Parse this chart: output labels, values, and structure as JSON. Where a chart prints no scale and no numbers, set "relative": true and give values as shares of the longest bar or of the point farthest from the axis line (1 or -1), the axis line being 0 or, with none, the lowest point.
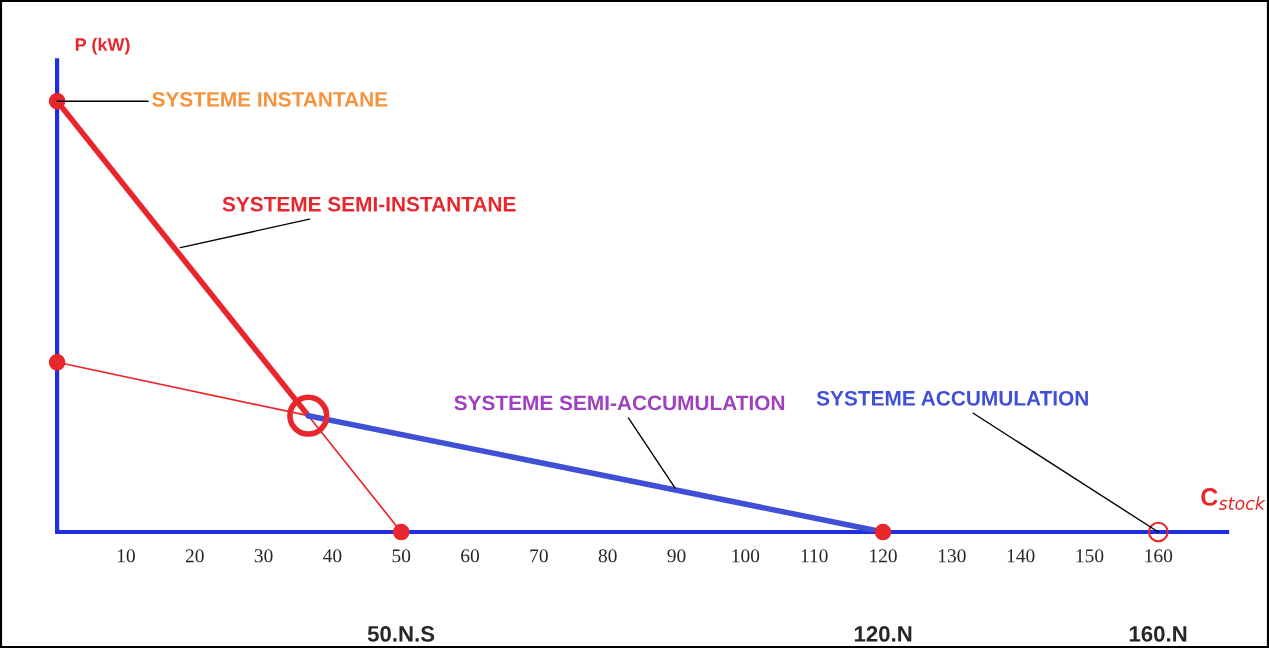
{
  "chart_data": {
    "type": "line",
    "relative": true,
    "xlabel": "C$_{stock}$",
    "ylabel": "P (kW)",
    "xlim": [
      0,
      170
    ],
    "xticks": [
      10,
      20,
      30,
      40,
      50,
      60,
      70,
      80,
      90,
      100,
      110,
      120,
      130,
      140,
      150,
      160
    ],
    "grid": false,
    "legend": false,
    "series": [
      {
        "color": "#e8262c",
        "x": [
          0,
          36.5
        ],
        "values": [
          1,
          0.27
        ]
      },
      {
        "color": "#e8262c",
        "x": [
          36.5,
          50
        ],
        "values": [
          0.27,
          0
        ]
      },
      {
        "color": "#e8262c",
        "x": [
          0,
          36.5
        ],
        "values": [
          0.394,
          0.27
        ]
      },
      {
        "color": "#3f4fd6",
        "x": [
          36.5,
          120
        ],
        "values": [
          0.27,
          0
        ]
      },
      {
        "type": "scatter",
        "color": "#e8262c",
        "x": [
          0,
          0,
          50,
          120
        ],
        "values": [
          1,
          0.394,
          0,
          0
        ],
        "marker": "circle"
      },
      {
        "type": "scatter",
        "color": "#e8262c",
        "x": [
          36.5
        ],
        "values": [
          0.27
        ],
        "marker": "circle"
      },
      {
        "type": "scatter",
        "color": "#e8262c",
        "x": [
          160
        ],
        "values": [
          0
        ],
        "marker": "circle"
      }
    ],
    "annotations": [
      {
        "text": "SYSTEME INSTANTANE",
        "x": 0,
        "y": 1
      },
      {
        "text": "SYSTEME SEMI-INSTANTANE",
        "x": 17.9,
        "y": 0.66
      },
      {
        "text": "SYSTEME SEMI-ACCUMULATION",
        "x": 89.8,
        "y": 0.102
      },
      {
        "text": "SYSTEME ACCUMULATION",
        "x": 160,
        "y": 0
      },
      "50.N.S",
      "120.N",
      "160.N"
    ]
  }
}
